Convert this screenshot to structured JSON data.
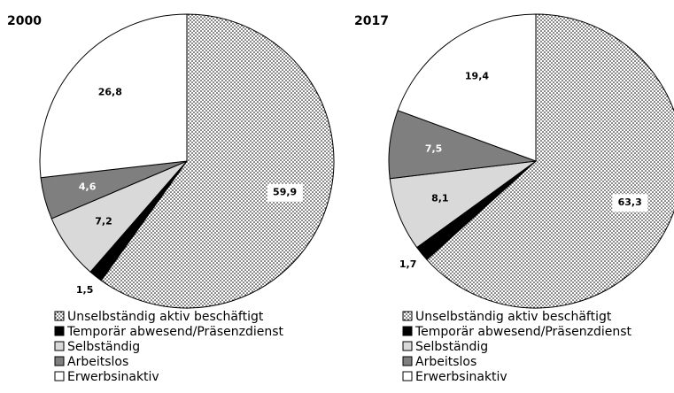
{
  "chart_data": [
    {
      "type": "pie",
      "title": "2000",
      "categories": [
        "Unselbständig aktiv beschäftigt",
        "Temporär abwesend/Präsenzdienst",
        "Selbständig",
        "Arbeitslos",
        "Erwerbsinaktiv"
      ],
      "values": [
        59.9,
        1.5,
        7.2,
        4.6,
        26.8
      ],
      "value_labels": [
        "59,9",
        "1,5",
        "7,2",
        "4,6",
        "26,8"
      ],
      "colors": [
        "#ffffff",
        "#000000",
        "#d9d9d9",
        "#7f7f7f",
        "#ffffff"
      ],
      "patterns": [
        "dots",
        null,
        null,
        null,
        null
      ]
    },
    {
      "type": "pie",
      "title": "2017",
      "categories": [
        "Unselbständig aktiv beschäftigt",
        "Temporär abwesend/Präsenzdienst",
        "Selbständig",
        "Arbeitslos",
        "Erwerbsinaktiv"
      ],
      "values": [
        63.3,
        1.7,
        8.1,
        7.5,
        19.4
      ],
      "value_labels": [
        "63,3",
        "1,7",
        "8,1",
        "7,5",
        "19,4"
      ],
      "colors": [
        "#ffffff",
        "#000000",
        "#d9d9d9",
        "#7f7f7f",
        "#ffffff"
      ],
      "patterns": [
        "dots",
        null,
        null,
        null,
        null
      ]
    }
  ]
}
